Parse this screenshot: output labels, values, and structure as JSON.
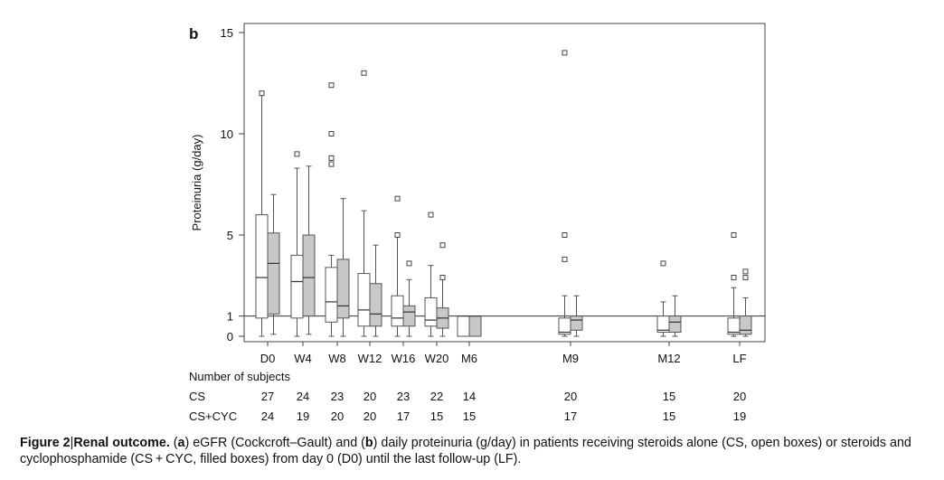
{
  "chart_data": {
    "type": "box",
    "panel_label": "b",
    "ylabel": "Proteinuria (g/day)",
    "ylim": [
      0,
      15
    ],
    "yticks": [
      0,
      1,
      5,
      10,
      15
    ],
    "reference_line": 1,
    "categories": [
      "D0",
      "W4",
      "W8",
      "W12",
      "W16",
      "W20",
      "M6",
      "M9",
      "M12",
      "LF"
    ],
    "series": [
      {
        "name": "CS",
        "fill": "#ffffff",
        "boxes": [
          {
            "low": 0,
            "q1": 0.9,
            "median": 2.9,
            "q3": 6.0,
            "high": 12.0,
            "outliers": [
              12.0
            ]
          },
          {
            "low": 0,
            "q1": 0.9,
            "median": 2.7,
            "q3": 4.0,
            "high": 8.3,
            "outliers": [
              9.0
            ]
          },
          {
            "low": 0,
            "q1": 0.7,
            "median": 1.7,
            "q3": 3.4,
            "high": 4.0,
            "outliers": [
              8.5,
              8.8,
              8.8,
              10.0,
              12.4
            ]
          },
          {
            "low": 0,
            "q1": 0.5,
            "median": 1.3,
            "q3": 3.1,
            "high": 6.2,
            "outliers": [
              13.0
            ]
          },
          {
            "low": 0,
            "q1": 0.5,
            "median": 0.9,
            "q3": 2.0,
            "high": 4.9,
            "outliers": [
              5.0,
              6.8
            ]
          },
          {
            "low": 0,
            "q1": 0.5,
            "median": 0.8,
            "q3": 1.9,
            "high": 3.5,
            "outliers": [
              6.0
            ]
          },
          {
            "low": 0,
            "q1": 0,
            "median": 1.0,
            "q3": 1.0,
            "high": 1.0,
            "outliers": []
          },
          {
            "low": 0,
            "q1": 0.1,
            "median": 0.2,
            "q3": 0.9,
            "high": 2.0,
            "outliers": [
              3.8,
              5.0,
              14.0
            ]
          },
          {
            "low": 0,
            "q1": 0.2,
            "median": 0.3,
            "q3": 1.0,
            "high": 1.7,
            "outliers": [
              3.6
            ]
          },
          {
            "low": 0,
            "q1": 0.1,
            "median": 0.2,
            "q3": 0.9,
            "high": 2.4,
            "outliers": [
              2.9,
              5.0
            ]
          }
        ]
      },
      {
        "name": "CS+CYC",
        "fill": "#c8c8c8",
        "boxes": [
          {
            "low": 0.1,
            "q1": 1.1,
            "median": 3.6,
            "q3": 5.1,
            "high": 7.0,
            "outliers": []
          },
          {
            "low": 0.1,
            "q1": 1.0,
            "median": 2.9,
            "q3": 5.0,
            "high": 8.4,
            "outliers": []
          },
          {
            "low": 0,
            "q1": 0.9,
            "median": 1.5,
            "q3": 3.8,
            "high": 6.8,
            "outliers": []
          },
          {
            "low": 0,
            "q1": 0.5,
            "median": 1.1,
            "q3": 2.6,
            "high": 4.5,
            "outliers": []
          },
          {
            "low": 0,
            "q1": 0.5,
            "median": 1.2,
            "q3": 1.5,
            "high": 2.8,
            "outliers": [
              3.6
            ]
          },
          {
            "low": 0,
            "q1": 0.4,
            "median": 0.9,
            "q3": 1.4,
            "high": 3.0,
            "outliers": [
              2.9,
              4.5
            ]
          },
          {
            "low": 0,
            "q1": 0,
            "median": 1.0,
            "q3": 1.0,
            "high": 1.0,
            "outliers": []
          },
          {
            "low": 0,
            "q1": 0.3,
            "median": 0.8,
            "q3": 1.0,
            "high": 2.0,
            "outliers": []
          },
          {
            "low": 0,
            "q1": 0.2,
            "median": 0.7,
            "q3": 1.0,
            "high": 2.0,
            "outliers": []
          },
          {
            "low": 0,
            "q1": 0.1,
            "median": 0.3,
            "q3": 1.0,
            "high": 1.9,
            "outliers": [
              2.9,
              3.2
            ]
          }
        ]
      }
    ],
    "subjects_header": "Number of subjects",
    "subjects": [
      {
        "label": "CS",
        "counts": [
          "27",
          "24",
          "23",
          "20",
          "23",
          "22",
          "14",
          "20",
          "15",
          "20"
        ]
      },
      {
        "label": "CS+CYC",
        "counts": [
          "24",
          "19",
          "20",
          "20",
          "17",
          "15",
          "15",
          "17",
          "15",
          "19"
        ]
      }
    ]
  },
  "caption": {
    "figure_label": "Figure 2",
    "separator": "|",
    "figure_title": "Renal outcome.",
    "text_1": " (",
    "bold_a": "a",
    "text_2": ") eGFR (Cockcroft–Gault) and (",
    "bold_b": "b",
    "text_3": ") daily proteinuria (g/day) in patients receiving steroids alone (CS, open boxes) or steroids and cyclophosphamide (CS + CYC, filled boxes) from day 0 (D0) until the last follow-up (LF)."
  }
}
